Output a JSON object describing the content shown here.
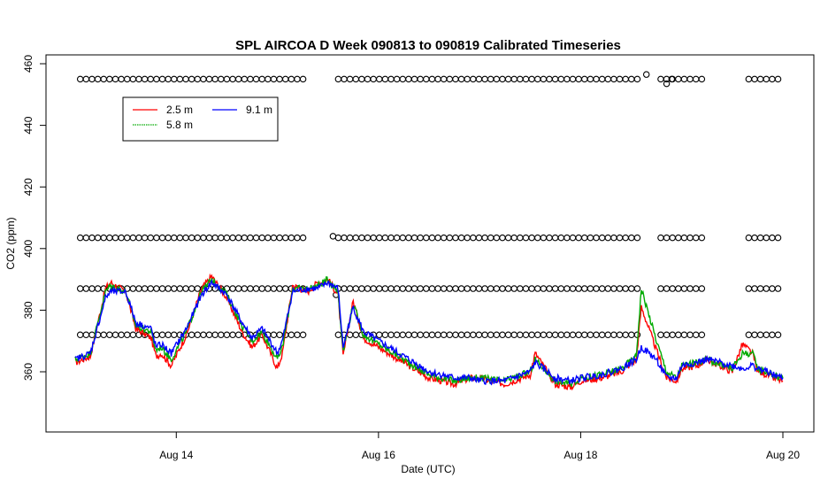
{
  "chart_data": {
    "type": "line",
    "title": "SPL AIRCOA D  Week 090813 to 090819  Calibrated Timeseries",
    "xlabel": "Date (UTC)",
    "ylabel": "CO2 (ppm)",
    "xlim": [
      13.0,
      20.0
    ],
    "ylim": [
      345,
      460
    ],
    "x_ticks": [
      {
        "value": 14,
        "label": "Aug 14"
      },
      {
        "value": 16,
        "label": "Aug 16"
      },
      {
        "value": 18,
        "label": "Aug 18"
      },
      {
        "value": 20,
        "label": "Aug 20"
      }
    ],
    "y_ticks": [
      360,
      380,
      400,
      420,
      440,
      460
    ],
    "legend": {
      "position": "top-left",
      "entries": [
        {
          "name": "2.5 m",
          "color": "#ff0000"
        },
        {
          "name": "9.1 m",
          "color": "#0000ff"
        },
        {
          "name": "5.8 m",
          "color": "#00aa00"
        }
      ]
    },
    "grid": false,
    "series": [
      {
        "name": "2.5 m",
        "color": "#ff0000",
        "x": [
          13.0,
          13.15,
          13.3,
          13.35,
          13.5,
          13.6,
          13.75,
          13.8,
          13.85,
          13.95,
          14.1,
          14.25,
          14.35,
          14.5,
          14.65,
          14.75,
          14.85,
          15.0,
          15.05,
          15.15,
          15.3,
          15.4,
          15.45,
          15.5,
          15.6,
          15.65,
          15.75,
          15.85,
          16.0,
          16.25,
          16.5,
          16.75,
          16.9,
          17.0,
          17.25,
          17.5,
          17.55,
          17.75,
          17.9,
          18.0,
          18.2,
          18.4,
          18.55,
          18.6,
          18.75,
          18.85,
          18.95,
          19.0,
          19.15,
          19.25,
          19.5,
          19.6,
          19.7,
          19.75,
          19.85,
          19.9,
          20.0
        ],
        "y": [
          363,
          365,
          387,
          389,
          386,
          374,
          371,
          365,
          366,
          362,
          372,
          387,
          391,
          384,
          373,
          368,
          372,
          361,
          366,
          388,
          386,
          389,
          389,
          390,
          385,
          365,
          383,
          371,
          368,
          363,
          358,
          356,
          358,
          358,
          356,
          359,
          366,
          356,
          355,
          357,
          358,
          360,
          364,
          381,
          367,
          358,
          357,
          361,
          362,
          364,
          360,
          369,
          366,
          360,
          359,
          358,
          357
        ]
      },
      {
        "name": "5.8 m",
        "color": "#00aa00",
        "x": [
          13.0,
          13.15,
          13.3,
          13.35,
          13.5,
          13.6,
          13.75,
          13.8,
          13.85,
          13.95,
          14.1,
          14.25,
          14.35,
          14.5,
          14.65,
          14.75,
          14.85,
          15.0,
          15.05,
          15.15,
          15.3,
          15.4,
          15.45,
          15.5,
          15.6,
          15.65,
          15.75,
          15.85,
          16.0,
          16.25,
          16.5,
          16.75,
          16.9,
          17.0,
          17.25,
          17.5,
          17.55,
          17.75,
          17.9,
          18.0,
          18.2,
          18.4,
          18.55,
          18.6,
          18.75,
          18.85,
          18.95,
          19.0,
          19.15,
          19.25,
          19.5,
          19.6,
          19.7,
          19.75,
          19.85,
          19.9,
          20.0
        ],
        "y": [
          364,
          366,
          386,
          388,
          386,
          375,
          373,
          367,
          368,
          364,
          373,
          386,
          390,
          385,
          375,
          370,
          373,
          364,
          368,
          387,
          387,
          388,
          389,
          390,
          386,
          367,
          382,
          372,
          369,
          364,
          359,
          357,
          358,
          358,
          357,
          360,
          364,
          357,
          356,
          358,
          359,
          361,
          365,
          387,
          370,
          360,
          358,
          362,
          363,
          364,
          361,
          366,
          366,
          361,
          360,
          359,
          358
        ]
      },
      {
        "name": "9.1 m",
        "color": "#0000ff",
        "x": [
          13.0,
          13.15,
          13.3,
          13.35,
          13.5,
          13.6,
          13.75,
          13.8,
          13.85,
          13.95,
          14.1,
          14.25,
          14.35,
          14.5,
          14.65,
          14.75,
          14.85,
          15.0,
          15.05,
          15.15,
          15.3,
          15.4,
          15.45,
          15.5,
          15.6,
          15.65,
          15.75,
          15.85,
          16.0,
          16.25,
          16.5,
          16.75,
          16.9,
          17.0,
          17.25,
          17.5,
          17.55,
          17.75,
          17.9,
          18.0,
          18.2,
          18.4,
          18.55,
          18.6,
          18.75,
          18.85,
          18.95,
          19.0,
          19.15,
          19.25,
          19.5,
          19.6,
          19.7,
          19.75,
          19.85,
          19.9,
          20.0
        ],
        "y": [
          364,
          366,
          384,
          386,
          386,
          376,
          374,
          368,
          369,
          366,
          374,
          385,
          389,
          385,
          376,
          371,
          374,
          366,
          370,
          386,
          387,
          387,
          388,
          389,
          387,
          368,
          381,
          373,
          370,
          365,
          360,
          358,
          358,
          357,
          357,
          360,
          363,
          358,
          357,
          358,
          359,
          361,
          364,
          368,
          364,
          358,
          358,
          362,
          363,
          364,
          362,
          361,
          362,
          361,
          360,
          359,
          358
        ]
      }
    ],
    "reference_points": {
      "marker": "open-circle",
      "levels": [
        372,
        387,
        403.5,
        455
      ],
      "gaps": [
        [
          15.3,
          15.55
        ],
        [
          18.6,
          18.75
        ],
        [
          19.2,
          19.65
        ]
      ],
      "outliers": [
        {
          "x": 15.55,
          "y": 404
        },
        {
          "x": 18.65,
          "y": 456.5
        },
        {
          "x": 18.85,
          "y": 453.5
        },
        {
          "x": 18.9,
          "y": 455
        },
        {
          "x": 15.58,
          "y": 385
        }
      ]
    }
  }
}
